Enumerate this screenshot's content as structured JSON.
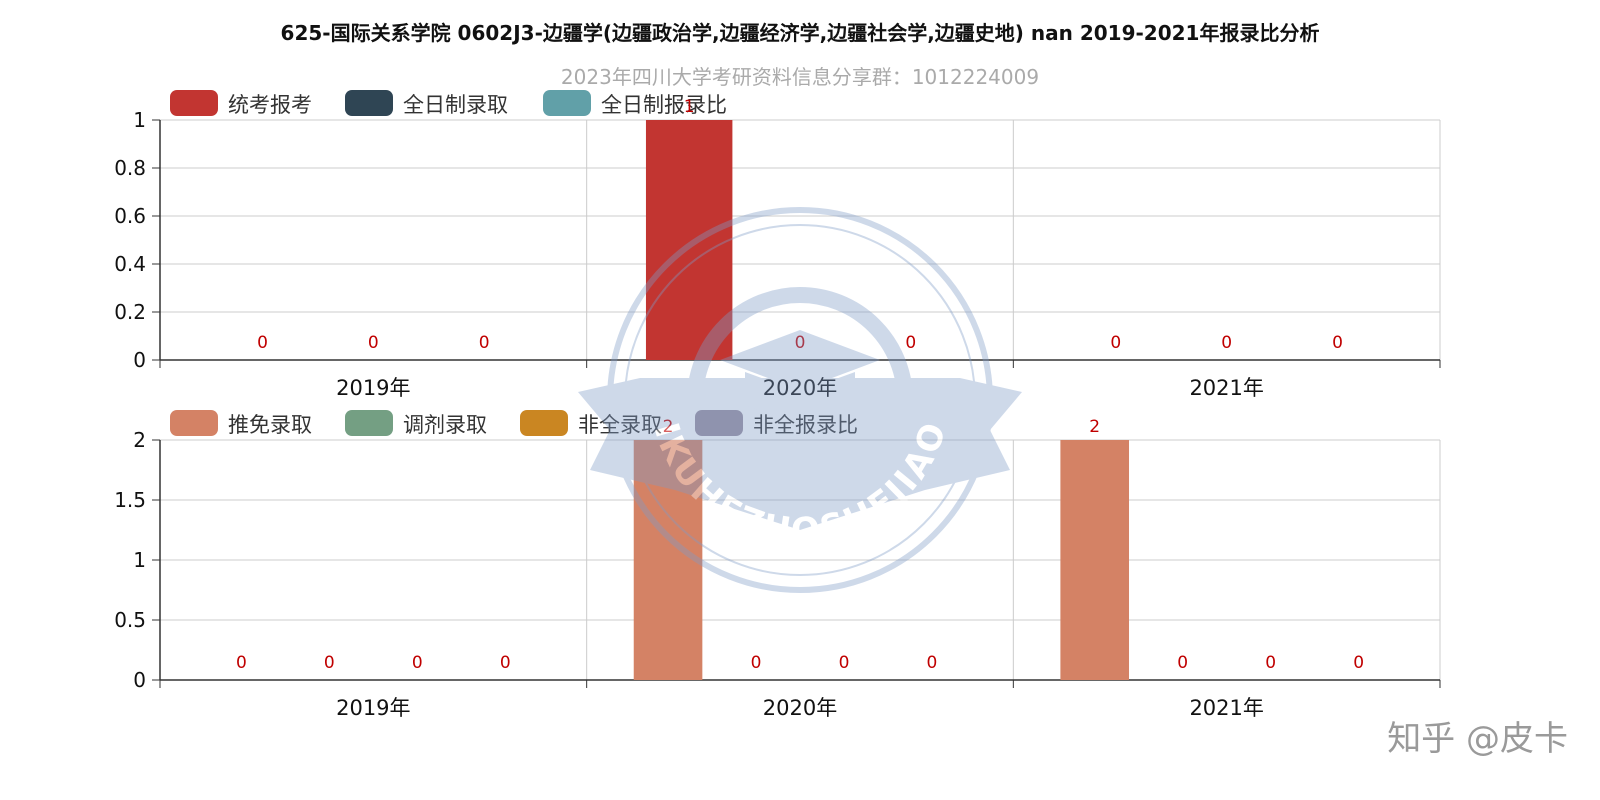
{
  "title": "625-国际关系学院 0602J3-边疆学(边疆政治学,边疆经济学,边疆社会学,边疆史地) nan 2019-2021年报录比分析",
  "subtitle": "2023年四川大学考研资料信息分享群：1012224009",
  "credit": "知乎 @皮卡",
  "watermark": "ZHIKUHEZUOSHEJIAOYU",
  "chart_data": [
    {
      "type": "bar",
      "categories": [
        "2019年",
        "2020年",
        "2021年"
      ],
      "ylim": [
        0,
        1
      ],
      "yticks": [
        "0",
        "0.2",
        "0.4",
        "0.6",
        "0.8",
        "1"
      ],
      "legend_position": "top-left",
      "series": [
        {
          "name": "统考报考",
          "color": "#c23531",
          "values": [
            0,
            1,
            0
          ],
          "labels": [
            "0",
            "1",
            "0"
          ]
        },
        {
          "name": "全日制录取",
          "color": "#2f4554",
          "values": [
            0,
            0,
            0
          ],
          "labels": [
            "0",
            "0",
            "0"
          ]
        },
        {
          "name": "全日制报录比",
          "color": "#61a0a8",
          "values": [
            0,
            0,
            0
          ],
          "labels": [
            "0",
            "0",
            "0"
          ]
        }
      ]
    },
    {
      "type": "bar",
      "categories": [
        "2019年",
        "2020年",
        "2021年"
      ],
      "ylim": [
        0,
        2
      ],
      "yticks": [
        "0",
        "0.5",
        "1",
        "1.5",
        "2"
      ],
      "legend_position": "top-left",
      "series": [
        {
          "name": "推免录取",
          "color": "#d48265",
          "values": [
            0,
            2,
            2
          ],
          "labels": [
            "0",
            "2",
            "2"
          ]
        },
        {
          "name": "调剂录取",
          "color": "#749f83",
          "values": [
            0,
            0,
            0
          ],
          "labels": [
            "0",
            "0",
            "0"
          ]
        },
        {
          "name": "非全录取",
          "color": "#ca8622",
          "values": [
            0,
            0,
            0
          ],
          "labels": [
            "0",
            "0",
            "0"
          ]
        },
        {
          "name": "非全报录比",
          "color": "#9a8f9f",
          "values": [
            0,
            0,
            0
          ],
          "labels": [
            "0",
            "0",
            "0"
          ]
        }
      ]
    }
  ]
}
